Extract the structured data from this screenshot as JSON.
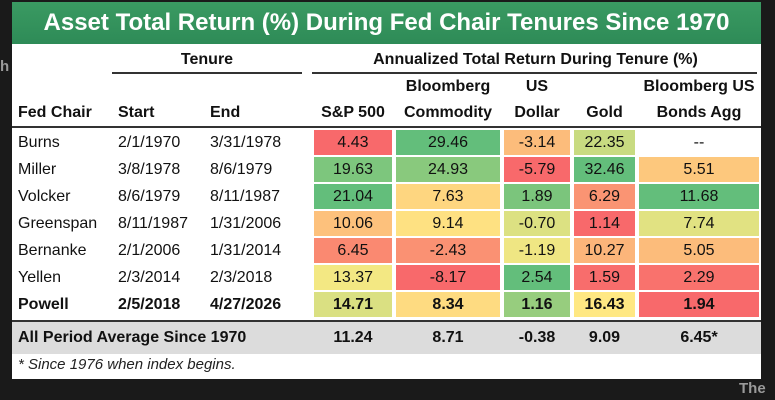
{
  "background_text": {
    "left_fragment": "h",
    "bottom_right": "The"
  },
  "chart_data": {
    "type": "table",
    "title": "Asset Total Return (%) During Fed Chair Tenures Since 1970",
    "group_headers": {
      "tenure": "Tenure",
      "returns": "Annualized Total Return During Tenure (%)"
    },
    "columns": [
      {
        "key": "chair",
        "label": "Fed Chair"
      },
      {
        "key": "start",
        "label": "Start"
      },
      {
        "key": "end",
        "label": "End"
      },
      {
        "key": "sp500",
        "label": "S&P 500"
      },
      {
        "key": "commodity",
        "label_top": "Bloomberg",
        "label": "Commodity"
      },
      {
        "key": "usd",
        "label_top": "US",
        "label": "Dollar"
      },
      {
        "key": "gold",
        "label": "Gold"
      },
      {
        "key": "bonds",
        "label_top": "Bloomberg US",
        "label": "Bonds Agg"
      }
    ],
    "rows": [
      {
        "chair": "Burns",
        "start": "2/1/1970",
        "end": "3/31/1978",
        "sp500": "4.43",
        "commodity": "29.46",
        "usd": "-3.14",
        "gold": "22.35",
        "bonds": "--",
        "bold": false
      },
      {
        "chair": "Miller",
        "start": "3/8/1978",
        "end": "8/6/1979",
        "sp500": "19.63",
        "commodity": "24.93",
        "usd": "-5.79",
        "gold": "32.46",
        "bonds": "5.51",
        "bold": false
      },
      {
        "chair": "Volcker",
        "start": "8/6/1979",
        "end": "8/11/1987",
        "sp500": "21.04",
        "commodity": "7.63",
        "usd": "1.89",
        "gold": "6.29",
        "bonds": "11.68",
        "bold": false
      },
      {
        "chair": "Greenspan",
        "start": "8/11/1987",
        "end": "1/31/2006",
        "sp500": "10.06",
        "commodity": "9.14",
        "usd": "-0.70",
        "gold": "1.14",
        "bonds": "7.74",
        "bold": false
      },
      {
        "chair": "Bernanke",
        "start": "2/1/2006",
        "end": "1/31/2014",
        "sp500": "6.45",
        "commodity": "-2.43",
        "usd": "-1.19",
        "gold": "10.27",
        "bonds": "5.05",
        "bold": false
      },
      {
        "chair": "Yellen",
        "start": "2/3/2014",
        "end": "2/3/2018",
        "sp500": "13.37",
        "commodity": "-8.17",
        "usd": "2.54",
        "gold": "1.59",
        "bonds": "2.29",
        "bold": false
      },
      {
        "chair": "Powell",
        "start": "2/5/2018",
        "end": "4/27/2026",
        "sp500": "14.71",
        "commodity": "8.34",
        "usd": "1.16",
        "gold": "16.43",
        "bonds": "1.94",
        "bold": true
      }
    ],
    "average_row": {
      "label": "All Period Average Since 1970",
      "sp500": "11.24",
      "commodity": "8.71",
      "usd": "-0.38",
      "gold": "9.09",
      "bonds": "6.45*"
    },
    "footnote": "* Since 1976 when index begins.",
    "colors": {
      "title_bar": "#2e8b57",
      "high": "#63be7b",
      "mid": "#ffeb84",
      "low": "#f8696b",
      "average_row": "#dcdcdc"
    }
  }
}
